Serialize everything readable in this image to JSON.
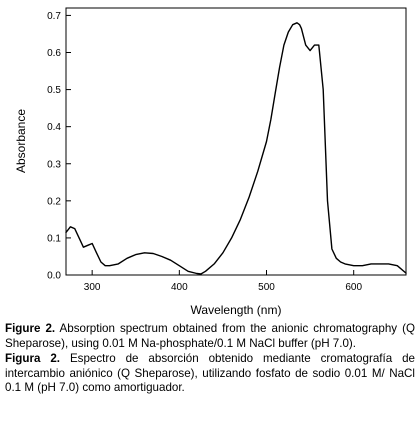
{
  "chart_data": {
    "type": "line",
    "title": "",
    "xlabel": "Wavelength (nm)",
    "ylabel": "Absorbance",
    "xlim": [
      270,
      660
    ],
    "ylim": [
      0.0,
      0.72
    ],
    "x_ticks": [
      300,
      400,
      500,
      600
    ],
    "y_ticks": [
      0.0,
      0.1,
      0.2,
      0.3,
      0.4,
      0.5,
      0.6,
      0.7
    ],
    "x_tick_labels": [
      "300",
      "400",
      "500",
      "600"
    ],
    "y_tick_labels": [
      "0.0",
      "0.1",
      "0.2",
      "0.3",
      "0.4",
      "0.5",
      "0.6",
      "0.7"
    ],
    "grid": false,
    "legend": "none",
    "line_color": "#000000",
    "series": [
      {
        "x": [
          270,
          275,
          280,
          285,
          290,
          295,
          300,
          305,
          310,
          315,
          320,
          330,
          340,
          350,
          360,
          370,
          380,
          390,
          400,
          410,
          420,
          425,
          430,
          440,
          450,
          460,
          470,
          480,
          490,
          500,
          505,
          510,
          515,
          520,
          525,
          530,
          535,
          538,
          540,
          545,
          550,
          555,
          560,
          565,
          570,
          575,
          580,
          585,
          590,
          600,
          610,
          620,
          630,
          640,
          650,
          660
        ],
        "y": [
          0.115,
          0.13,
          0.125,
          0.1,
          0.075,
          0.08,
          0.085,
          0.06,
          0.035,
          0.025,
          0.025,
          0.03,
          0.045,
          0.055,
          0.06,
          0.058,
          0.05,
          0.04,
          0.025,
          0.01,
          0.004,
          0.003,
          0.01,
          0.03,
          0.06,
          0.1,
          0.15,
          0.21,
          0.28,
          0.36,
          0.42,
          0.49,
          0.56,
          0.62,
          0.655,
          0.675,
          0.68,
          0.675,
          0.665,
          0.62,
          0.605,
          0.62,
          0.62,
          0.5,
          0.2,
          0.07,
          0.045,
          0.035,
          0.03,
          0.025,
          0.025,
          0.03,
          0.03,
          0.03,
          0.025,
          0.005
        ]
      }
    ]
  },
  "caption": {
    "fig_en_label": "Figure 2.",
    "fig_en_text": "Absorption spectrum obtained from the anionic chromatography (Q Sheparose), using 0.01 M Na-phosphate/0.1 M NaCl buffer (pH 7.0).",
    "fig_es_label": "Figura 2.",
    "fig_es_text": "Espectro de absorción obtenido mediante cromatografía de intercambio aniónico (Q Sheparose), utilizando fosfato de sodio 0.01 M/ NaCl 0.1 M (pH 7.0) como amortiguador."
  }
}
